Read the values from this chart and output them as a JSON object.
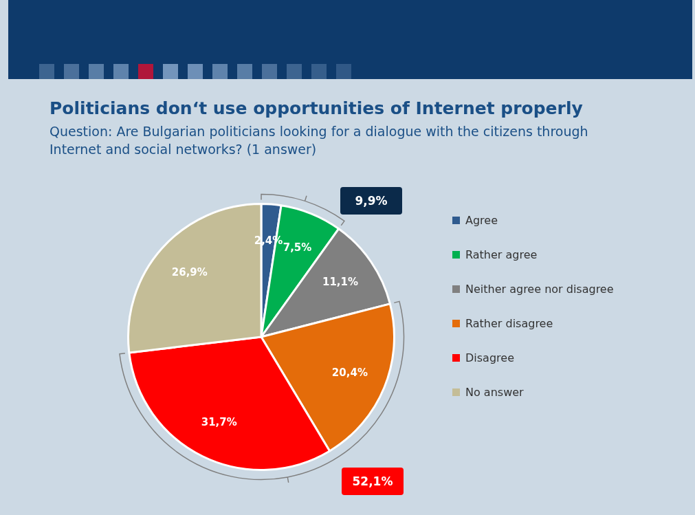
{
  "chart_data": {
    "type": "pie",
    "title": "Politicians don‘t use opportunities of Internet properly",
    "subtitle": "Question: Are Bulgarian politicians looking for a dialogue with the citizens through Internet and social networks? (1 answer)",
    "categories": [
      "Agree",
      "Rather agree",
      "Neither agree nor disagree",
      "Rather disagree",
      "Disagree",
      "No answer"
    ],
    "values": [
      2.4,
      7.5,
      11.1,
      20.4,
      31.7,
      26.9
    ],
    "value_labels": [
      "2,4%",
      "7,5%",
      "11,1%",
      "20,4%",
      "31,7%",
      "26,9%"
    ],
    "colors": [
      "#2f5b8f",
      "#00b050",
      "#808080",
      "#e46c0a",
      "#ff0000",
      "#c4bd97"
    ],
    "legend": "right",
    "annotations": [
      "9,9%",
      "52,1%"
    ]
  }
}
